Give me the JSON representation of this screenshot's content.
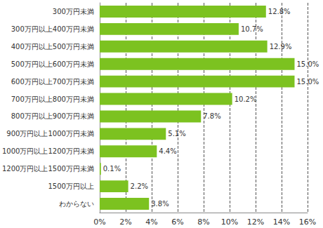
{
  "chart_data": {
    "type": "bar",
    "orientation": "horizontal",
    "categories": [
      "300万円未満",
      "300万円以上400万円未満",
      "400万円以上500万円未満",
      "500万円以上600万円未満",
      "600万円以上700万円未満",
      "700万円以上800万円未満",
      "800万円以上900万円未満",
      "900万円以上1000万円未満",
      "1000万円以上1200万円未満",
      "1200万円以上1500万円未満",
      "1500万円以上",
      "わからない"
    ],
    "values": [
      12.8,
      10.7,
      12.9,
      15.0,
      15.0,
      10.2,
      7.8,
      5.1,
      4.4,
      0.1,
      2.2,
      3.8
    ],
    "value_labels": [
      "12.8%",
      "10.7%",
      "12.9%",
      "15.0%",
      "15.0%",
      "10.2%",
      "7.8%",
      "5.1%",
      "4.4%",
      "0.1%",
      "2.2%",
      "3.8%"
    ],
    "color": "#7cc220",
    "xlim": [
      0,
      16
    ],
    "xticks": [
      {
        "value": 0,
        "label": "0%"
      },
      {
        "value": 2,
        "label": "2%"
      },
      {
        "value": 4,
        "label": "4%"
      },
      {
        "value": 6,
        "label": "6%"
      },
      {
        "value": 8,
        "label": "8%"
      },
      {
        "value": 10,
        "label": "10%"
      },
      {
        "value": 12,
        "label": "12%"
      },
      {
        "value": 14,
        "label": "14%"
      },
      {
        "value": 16,
        "label": "16%"
      }
    ],
    "grid": true,
    "data_labels": true
  }
}
